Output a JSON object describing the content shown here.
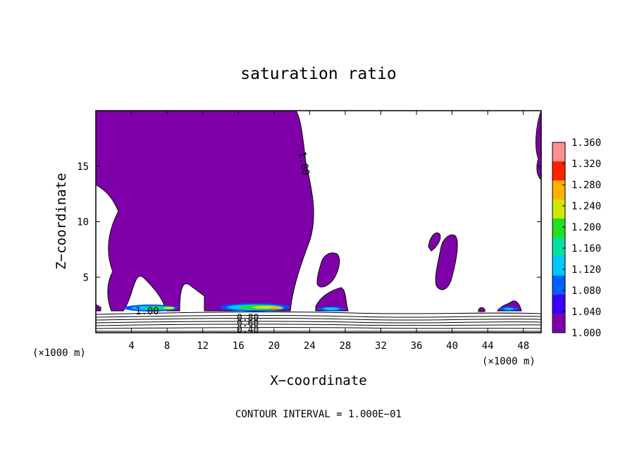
{
  "chart_data": {
    "type": "heatmap",
    "title": "saturation ratio",
    "xlabel": "X−coordinate",
    "ylabel": "Z−coordinate",
    "x_unit_left": "(×1000 m)",
    "x_unit_right": "(×1000 m)",
    "footer": "CONTOUR INTERVAL = 1.000E−01",
    "xlim": [
      0,
      50
    ],
    "ylim": [
      0,
      20
    ],
    "x_ticks": [
      4,
      8,
      12,
      16,
      20,
      24,
      28,
      32,
      36,
      40,
      44,
      48
    ],
    "x_tick_labels": [
      "4",
      "8",
      "12",
      "16",
      "20",
      "24",
      "28",
      "32",
      "36",
      "40",
      "44",
      "48"
    ],
    "y_ticks": [
      5,
      10,
      15
    ],
    "y_tick_labels": [
      "5",
      "10",
      "15"
    ],
    "colorbar": {
      "min": 1.0,
      "max": 1.36,
      "tick_values": [
        1.0,
        1.04,
        1.08,
        1.12,
        1.16,
        1.2,
        1.24,
        1.28,
        1.32,
        1.36
      ],
      "tick_labels": [
        "1.000",
        "1.040",
        "1.080",
        "1.120",
        "1.160",
        "1.200",
        "1.240",
        "1.280",
        "1.320",
        "1.360"
      ],
      "colors": [
        "#7f00a8",
        "#3c00ff",
        "#0060ff",
        "#00c8ff",
        "#00e0a0",
        "#20e020",
        "#d0e800",
        "#ffb000",
        "#ff2000",
        "#ff9090"
      ]
    },
    "contour_labels": [
      "1.00",
      "1.00",
      "0.80",
      "0.60",
      "0.40"
    ],
    "colors": {
      "saturated_fill": "#7f00a8",
      "contour_line": "#000000"
    }
  }
}
